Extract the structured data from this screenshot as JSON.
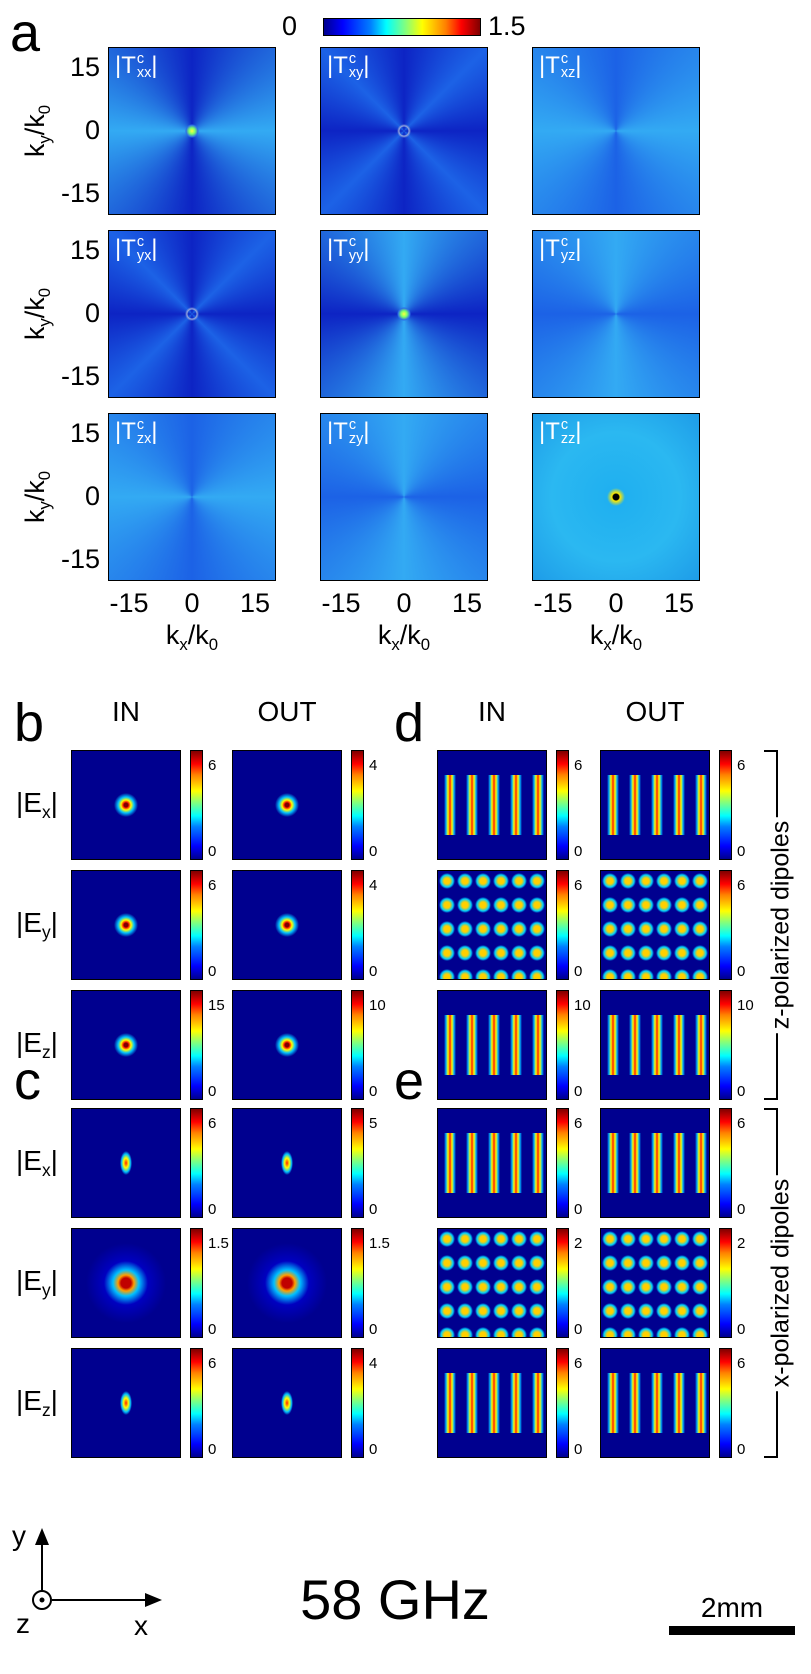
{
  "panel_a": {
    "label": "a",
    "colorbar": {
      "min": 0,
      "max": 1.5
    },
    "maps": [
      [
        {
          "text": "|T",
          "sup": "c",
          "sub": "xx"
        },
        {
          "text": "|"
        }
      ],
      [
        {
          "text": "|T",
          "sup": "c",
          "sub": "xy"
        },
        {
          "text": "|"
        }
      ],
      [
        {
          "text": "|T",
          "sup": "c",
          "sub": "xz"
        },
        {
          "text": "|"
        }
      ],
      [
        {
          "text": "|T",
          "sup": "c",
          "sub": "yx"
        },
        {
          "text": "|"
        }
      ],
      [
        {
          "text": "|T",
          "sup": "c",
          "sub": "yy"
        },
        {
          "text": "|"
        }
      ],
      [
        {
          "text": "|T",
          "sup": "c",
          "sub": "yz"
        },
        {
          "text": "|"
        }
      ],
      [
        {
          "text": "|T",
          "sup": "c",
          "sub": "zx"
        },
        {
          "text": "|"
        }
      ],
      [
        {
          "text": "|T",
          "sup": "c",
          "sub": "zy"
        },
        {
          "text": "|"
        }
      ],
      [
        {
          "text": "|T",
          "sup": "c",
          "sub": "zz"
        },
        {
          "text": "|"
        }
      ]
    ],
    "y_label": [
      {
        "text": "k",
        "sub": "y"
      },
      {
        "text": "/k",
        "sub": "0"
      }
    ],
    "x_label": [
      {
        "text": "k",
        "sub": "x"
      },
      {
        "text": "/k",
        "sub": "0"
      }
    ],
    "yticks": [
      15,
      0,
      -15
    ],
    "xticks": [
      -15,
      0,
      15
    ]
  },
  "panel_b": {
    "label": "b",
    "columns": [
      "IN",
      "OUT"
    ],
    "rows": [
      [
        {
          "text": "|E",
          "sub": "x"
        },
        {
          "text": "|"
        }
      ],
      [
        {
          "text": "|E",
          "sub": "y"
        },
        {
          "text": "|"
        }
      ],
      [
        {
          "text": "|E",
          "sub": "z"
        },
        {
          "text": "|"
        }
      ]
    ],
    "colorbars": [
      [
        {
          "max": 6,
          "min": 0
        },
        {
          "max": 4,
          "min": 0
        }
      ],
      [
        {
          "max": 6,
          "min": 0
        },
        {
          "max": 4,
          "min": 0
        }
      ],
      [
        {
          "max": 15,
          "min": 0
        },
        {
          "max": 10,
          "min": 0
        }
      ]
    ]
  },
  "panel_c": {
    "label": "c",
    "rows": [
      [
        {
          "text": "|E",
          "sub": "x"
        },
        {
          "text": "|"
        }
      ],
      [
        {
          "text": "|E",
          "sub": "y"
        },
        {
          "text": "|"
        }
      ],
      [
        {
          "text": "|E",
          "sub": "z"
        },
        {
          "text": "|"
        }
      ]
    ],
    "colorbars": [
      [
        {
          "max": 6,
          "min": 0
        },
        {
          "max": 5,
          "min": 0
        }
      ],
      [
        {
          "max": 1.5,
          "min": 0
        },
        {
          "max": 1.5,
          "min": 0
        }
      ],
      [
        {
          "max": 6,
          "min": 0
        },
        {
          "max": 4,
          "min": 0
        }
      ]
    ]
  },
  "panel_d": {
    "label": "d",
    "columns": [
      "IN",
      "OUT"
    ],
    "side_label": "z-polarized dipoles",
    "colorbars": [
      [
        {
          "max": 6,
          "min": 0
        },
        {
          "max": 6,
          "min": 0
        }
      ],
      [
        {
          "max": 6,
          "min": 0
        },
        {
          "max": 6,
          "min": 0
        }
      ],
      [
        {
          "max": 10,
          "min": 0
        },
        {
          "max": 10,
          "min": 0
        }
      ]
    ]
  },
  "panel_e": {
    "label": "e",
    "side_label": "x-polarized dipoles",
    "colorbars": [
      [
        {
          "max": 6,
          "min": 0
        },
        {
          "max": 6,
          "min": 0
        }
      ],
      [
        {
          "max": 2,
          "min": 0
        },
        {
          "max": 2,
          "min": 0
        }
      ],
      [
        {
          "max": 6,
          "min": 0
        },
        {
          "max": 6,
          "min": 0
        }
      ]
    ]
  },
  "footer": {
    "frequency": "58 GHz",
    "scale_bar": "2mm",
    "axis_y": "y",
    "axis_z": "z",
    "axis_x": "x"
  }
}
